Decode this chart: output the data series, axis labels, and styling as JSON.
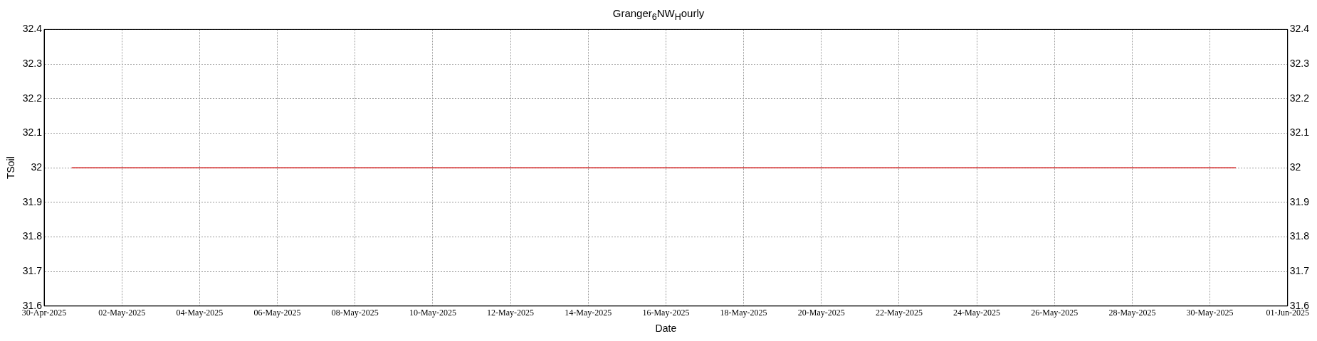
{
  "chart_data": {
    "type": "line",
    "title": "Granger$_{6}$NW$_{H}$ourly",
    "xlabel": "Date",
    "ylabel": "TSoil",
    "x": [
      "2025-04-30T17:00",
      "2025-05-30T16:00"
    ],
    "series": [
      {
        "color": "#cc0000",
        "values": [
          32,
          32
        ]
      }
    ],
    "xlim": [
      "2025-04-30",
      "2025-06-01"
    ],
    "xticks": [
      {
        "value": "2025-04-30",
        "label": "30-Apr-2025"
      },
      {
        "value": "2025-05-02",
        "label": "02-May-2025"
      },
      {
        "value": "2025-05-04",
        "label": "04-May-2025"
      },
      {
        "value": "2025-05-06",
        "label": "06-May-2025"
      },
      {
        "value": "2025-05-08",
        "label": "08-May-2025"
      },
      {
        "value": "2025-05-10",
        "label": "10-May-2025"
      },
      {
        "value": "2025-05-12",
        "label": "12-May-2025"
      },
      {
        "value": "2025-05-14",
        "label": "14-May-2025"
      },
      {
        "value": "2025-05-16",
        "label": "16-May-2025"
      },
      {
        "value": "2025-05-18",
        "label": "18-May-2025"
      },
      {
        "value": "2025-05-20",
        "label": "20-May-2025"
      },
      {
        "value": "2025-05-22",
        "label": "22-May-2025"
      },
      {
        "value": "2025-05-24",
        "label": "24-May-2025"
      },
      {
        "value": "2025-05-26",
        "label": "26-May-2025"
      },
      {
        "value": "2025-05-28",
        "label": "28-May-2025"
      },
      {
        "value": "2025-05-30",
        "label": "30-May-2025"
      },
      {
        "value": "2025-06-01",
        "label": "01-Jun-2025"
      }
    ],
    "ylim": [
      31.6,
      32.4
    ],
    "yticks": [
      31.6,
      31.7,
      31.8,
      31.9,
      32,
      32.1,
      32.2,
      32.3,
      32.4
    ],
    "y2lim": [
      31.6,
      32.4
    ],
    "y2ticks": [
      31.6,
      31.7,
      31.8,
      31.9,
      32,
      32.1,
      32.2,
      32.3,
      32.4
    ],
    "grid": true,
    "legend": false,
    "marker": "none",
    "line_style": "solid"
  }
}
